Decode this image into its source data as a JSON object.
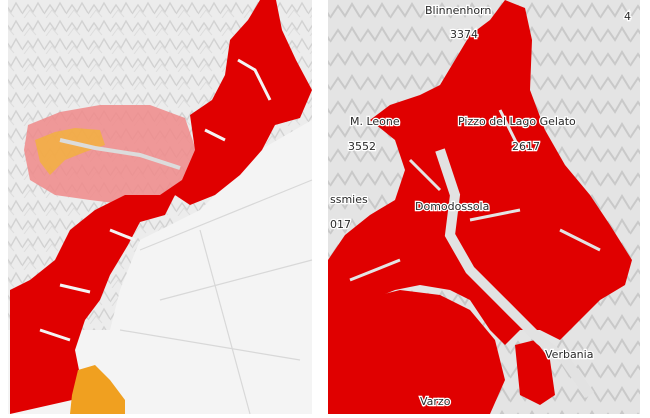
{
  "right_panel": {
    "labels": [
      "Blinnenhorn",
      "3374",
      "M. Leone",
      "3552",
      "Pizzo del Lago Gelato",
      "2617",
      "Domodossola",
      "ssmies",
      "017",
      "Verbania",
      "Varzo",
      "4"
    ]
  }
}
